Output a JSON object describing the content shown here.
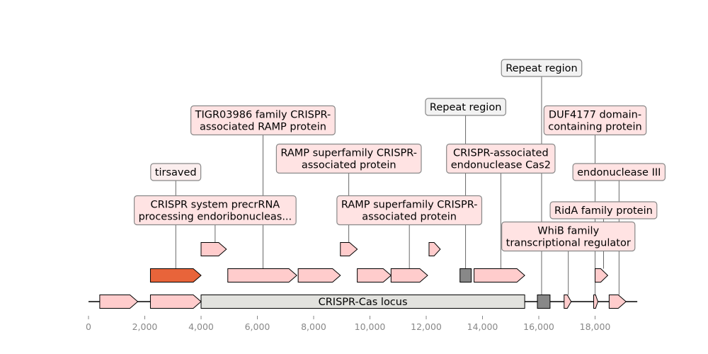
{
  "axis": {
    "xlim": [
      0,
      19700
    ],
    "ticks": [
      {
        "value": 0,
        "label": "0"
      },
      {
        "value": 2000,
        "label": "2,000"
      },
      {
        "value": 4000,
        "label": "4,000"
      },
      {
        "value": 6000,
        "label": "6,000"
      },
      {
        "value": 8000,
        "label": "8,000"
      },
      {
        "value": 10000,
        "label": "10,000"
      },
      {
        "value": 12000,
        "label": "12,000"
      },
      {
        "value": 14000,
        "label": "14,000"
      },
      {
        "value": 16000,
        "label": "16,000"
      },
      {
        "value": 18000,
        "label": "18,000"
      }
    ]
  },
  "sequence": {
    "start": 0,
    "end": 19500
  },
  "colors": {
    "gene": "#ffcccc",
    "highlight": "#e8643a",
    "repeat": "#888888",
    "locus": "#e2e2de",
    "gene_label_bg": "#ffe3e3",
    "repeat_label_bg": "#f2f2f2",
    "tirsaved_label_bg": "#fbeeee"
  },
  "locus": {
    "start": 4000,
    "end": 15500,
    "label": "CRISPR-Cas locus"
  },
  "features": [
    {
      "id": "f1",
      "start": 400,
      "end": 1750,
      "strand": 1,
      "level": 0,
      "kind": "gene"
    },
    {
      "id": "f2",
      "start": 2200,
      "end": 4000,
      "strand": 1,
      "level": 0,
      "kind": "gene"
    },
    {
      "id": "f3",
      "start": 2200,
      "end": 4000,
      "strand": 1,
      "level": 1,
      "kind": "highlight"
    },
    {
      "id": "f4",
      "start": 4000,
      "end": 4900,
      "strand": 1,
      "level": 2,
      "kind": "gene"
    },
    {
      "id": "f5",
      "start": 4950,
      "end": 7400,
      "strand": 1,
      "level": 1,
      "kind": "gene"
    },
    {
      "id": "f6",
      "start": 7450,
      "end": 8950,
      "strand": 1,
      "level": 1,
      "kind": "gene"
    },
    {
      "id": "f7",
      "start": 8950,
      "end": 9550,
      "strand": 1,
      "level": 2,
      "kind": "gene"
    },
    {
      "id": "f8",
      "start": 9550,
      "end": 10750,
      "strand": 1,
      "level": 1,
      "kind": "gene"
    },
    {
      "id": "f9",
      "start": 10750,
      "end": 12050,
      "strand": 1,
      "level": 1,
      "kind": "gene"
    },
    {
      "id": "f10",
      "start": 12100,
      "end": 12500,
      "strand": 1,
      "level": 2,
      "kind": "gene"
    },
    {
      "id": "f11",
      "start": 13200,
      "end": 13600,
      "strand": 0,
      "level": 1,
      "kind": "repeat"
    },
    {
      "id": "f12",
      "start": 13700,
      "end": 15500,
      "strand": 1,
      "level": 1,
      "kind": "gene"
    },
    {
      "id": "f13",
      "start": 15950,
      "end": 16400,
      "strand": 0,
      "level": 0,
      "kind": "repeat"
    },
    {
      "id": "f14",
      "start": 16900,
      "end": 17150,
      "strand": 1,
      "level": 0,
      "kind": "gene"
    },
    {
      "id": "f15",
      "start": 17950,
      "end": 18100,
      "strand": 1,
      "level": 0,
      "kind": "gene"
    },
    {
      "id": "f16",
      "start": 18000,
      "end": 18450,
      "strand": 1,
      "level": 1,
      "kind": "gene"
    },
    {
      "id": "f17",
      "start": 18500,
      "end": 19100,
      "strand": 1,
      "level": 0,
      "kind": "gene"
    }
  ],
  "labels": [
    {
      "id": "l1",
      "lines": [
        "tirsaved"
      ],
      "anchor": 3100,
      "feature": "f3",
      "row": 4,
      "kind": "tirsaved"
    },
    {
      "id": "l2",
      "lines": [
        "CRISPR system precrRNA",
        "processing endoribonucleas..."
      ],
      "anchor": 4500,
      "feature": "f4",
      "row": 5,
      "kind": "gene"
    },
    {
      "id": "l3",
      "lines": [
        "TIGR03986 family CRISPR-",
        "associated RAMP protein"
      ],
      "anchor": 6200,
      "feature": "f5",
      "row": 2,
      "kind": "gene"
    },
    {
      "id": "l4",
      "lines": [
        "RAMP superfamily CRISPR-",
        "associated protein"
      ],
      "anchor": 9250,
      "feature": "f7",
      "row": 3,
      "kind": "gene"
    },
    {
      "id": "l5",
      "lines": [
        "RAMP superfamily CRISPR-",
        "associated protein"
      ],
      "anchor": 11400,
      "feature": "f9",
      "row": 5,
      "kind": "gene"
    },
    {
      "id": "l6",
      "lines": [
        "Repeat region"
      ],
      "anchor": 13400,
      "feature": "f11",
      "row": 1,
      "kind": "repeat"
    },
    {
      "id": "l7",
      "lines": [
        "CRISPR-associated",
        "endonuclease Cas2"
      ],
      "anchor": 14650,
      "feature": "f12",
      "row": 3,
      "kind": "gene"
    },
    {
      "id": "l8",
      "lines": [
        "Repeat region"
      ],
      "anchor": 16100,
      "feature": "f13",
      "row": 0,
      "kind": "repeat"
    },
    {
      "id": "l9",
      "lines": [
        "DUF4177 domain-",
        "containing protein"
      ],
      "anchor": 18000,
      "feature": "f15",
      "row": 2,
      "kind": "gene"
    },
    {
      "id": "l10",
      "lines": [
        "endonuclease III"
      ],
      "anchor": 18850,
      "feature": "f17",
      "row": 4,
      "kind": "gene"
    },
    {
      "id": "l11",
      "lines": [
        "RidA family protein"
      ],
      "anchor": 18300,
      "feature": "f16",
      "row": 5,
      "kind": "gene"
    },
    {
      "id": "l12",
      "lines": [
        "WhiB family",
        "transcriptional regulator"
      ],
      "anchor": 17050,
      "feature": "f14",
      "row": 6,
      "kind": "gene"
    }
  ]
}
